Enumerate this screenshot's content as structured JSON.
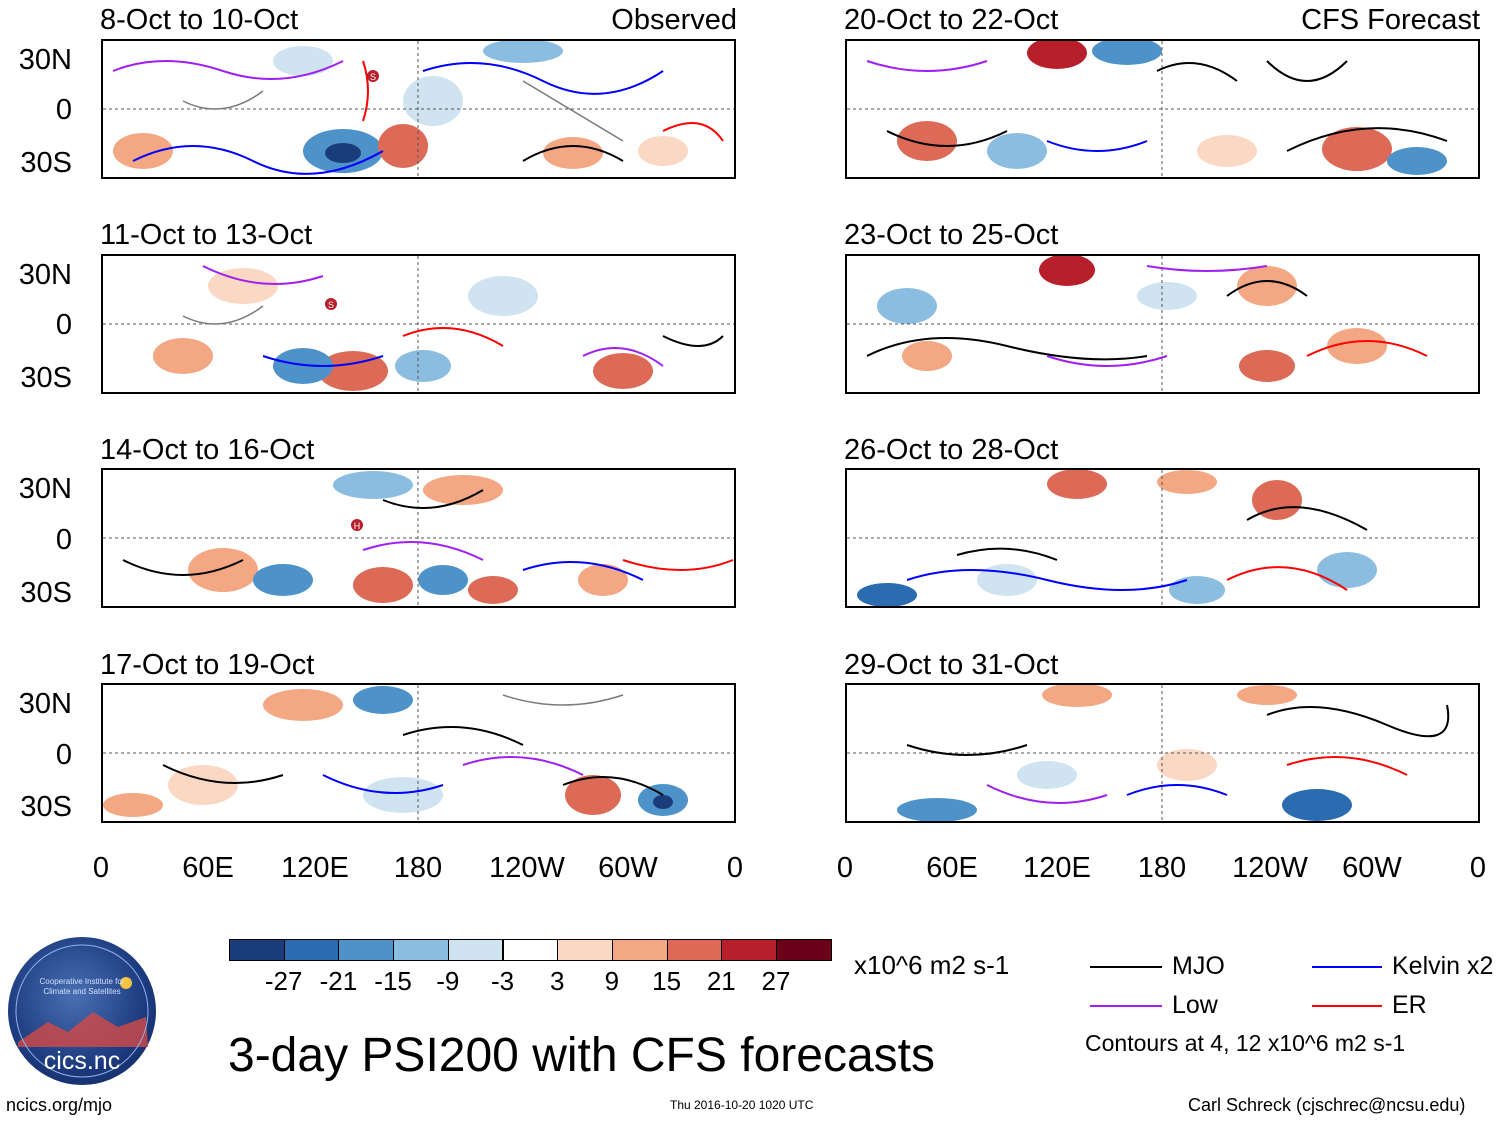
{
  "panels": [
    {
      "id": "obs1",
      "title": "8-Oct to 10-Oct",
      "label": "Observed"
    },
    {
      "id": "obs2",
      "title": "11-Oct to 13-Oct",
      "label": ""
    },
    {
      "id": "obs3",
      "title": "14-Oct to 16-Oct",
      "label": ""
    },
    {
      "id": "obs4",
      "title": "17-Oct to 19-Oct",
      "label": ""
    },
    {
      "id": "fc1",
      "title": "20-Oct to 22-Oct",
      "label": "CFS Forecast"
    },
    {
      "id": "fc2",
      "title": "23-Oct to 25-Oct",
      "label": ""
    },
    {
      "id": "fc3",
      "title": "26-Oct to 28-Oct",
      "label": ""
    },
    {
      "id": "fc4",
      "title": "29-Oct to 31-Oct",
      "label": ""
    }
  ],
  "lat_labels": [
    "30N",
    "0",
    "30S"
  ],
  "lon_labels": [
    "0",
    "60E",
    "120E",
    "180",
    "120W",
    "60W",
    "0"
  ],
  "markers": {
    "s": "S",
    "h": "H"
  },
  "colorbar": {
    "colors": [
      "#1a3d7a",
      "#2b6cb0",
      "#4d93c9",
      "#8bbde0",
      "#cfe3f1",
      "#ffffff",
      "#fbd8c4",
      "#f3a783",
      "#dc6a56",
      "#b71f2a",
      "#6b0019"
    ],
    "ticks": [
      "-27",
      "-21",
      "-15",
      "-9",
      "-3",
      "3",
      "9",
      "15",
      "21",
      "27"
    ],
    "units": "x10^6 m2 s-1"
  },
  "legend": {
    "items": [
      {
        "label": "MJO",
        "color": "#000000"
      },
      {
        "label": "Kelvin x2",
        "color": "#0000ff"
      },
      {
        "label": "Low",
        "color": "#a020f0"
      },
      {
        "label": "ER",
        "color": "#ff0000"
      }
    ],
    "contours": "Contours at 4, 12 x10^6 m2 s-1"
  },
  "main_title": "3-day PSI200 with CFS forecasts",
  "logo_text": "cics.nc",
  "logo_ring": "Cooperative Institute for Climate and Satellites",
  "footer": {
    "left": "ncics.org/mjo",
    "center": "Thu 2016-10-20 1020 UTC",
    "right": "Carl Schreck (cjschrec@ncsu.edu)"
  }
}
